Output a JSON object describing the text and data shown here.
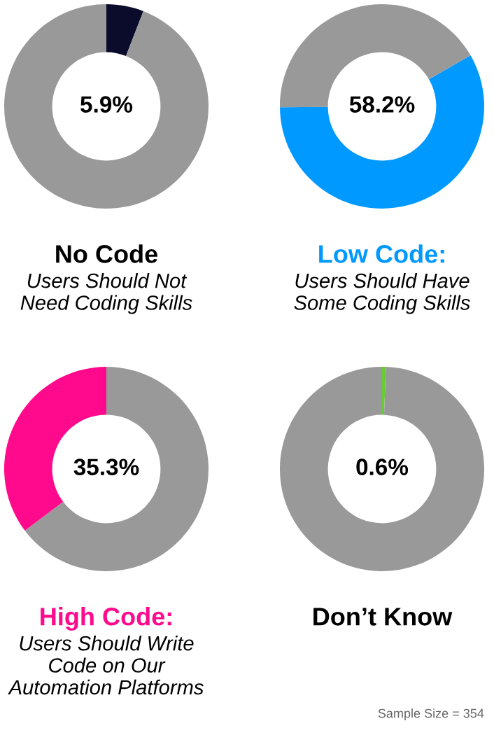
{
  "chart_data": [
    {
      "type": "donut",
      "title": "No Code",
      "subtitle": "Users Should Not\nNeed Coding Skills",
      "categories": [
        null,
        null
      ],
      "values": [
        5.9,
        94.1
      ],
      "colors": [
        "#0b0b2b",
        "#999999"
      ],
      "annotations": [
        "5.9%"
      ]
    },
    {
      "type": "donut",
      "title": "Low Code:",
      "subtitle": "Users Should Have\nSome Coding Skills",
      "categories": [
        null,
        null
      ],
      "values": [
        58.2,
        41.8
      ],
      "colors": [
        "#0099ff",
        "#999999"
      ],
      "annotations": [
        "58.2%"
      ]
    },
    {
      "type": "donut",
      "title": "High Code:",
      "subtitle": "Users Should Write\nCode on Our\nAutomation Platforms",
      "categories": [
        null,
        null
      ],
      "values": [
        64.7,
        35.3
      ],
      "colors": [
        "#999999",
        "#ff0a8c"
      ],
      "annotations": [
        "35.3%"
      ]
    },
    {
      "type": "donut",
      "title": "Don’t Know",
      "categories": [
        null,
        null
      ],
      "values": [
        0.6,
        99.4
      ],
      "colors": [
        "#66cc33",
        "#999999"
      ],
      "annotations": [
        "0.6%",
        "Sample Size = 354"
      ]
    }
  ]
}
